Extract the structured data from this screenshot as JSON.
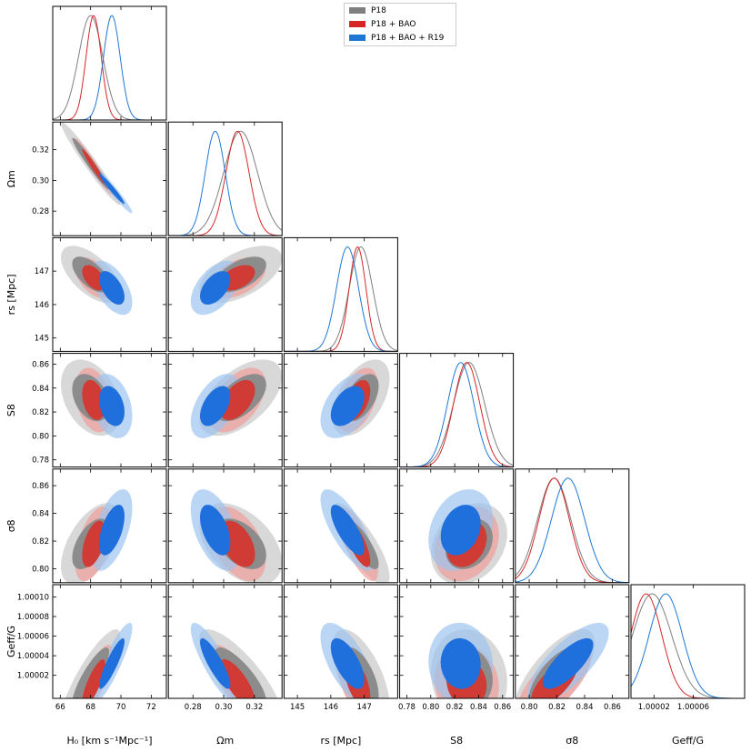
{
  "chart_data": {
    "type": "triangle corner plot",
    "parameters": [
      {
        "key": "H0",
        "label": "H₀ [km s⁻¹Mpc⁻¹]",
        "range": [
          65.5,
          73.0
        ],
        "ticks": [
          66,
          68,
          70,
          72
        ],
        "tick_labels": [
          "66",
          "68",
          "70",
          "72"
        ]
      },
      {
        "key": "Om",
        "label": "Ωm",
        "range": [
          0.264,
          0.338
        ],
        "ticks": [
          0.28,
          0.3,
          0.32
        ],
        "tick_labels": [
          "0.28",
          "0.30",
          "0.32"
        ]
      },
      {
        "key": "rs",
        "label": "rs [Mpc]",
        "range": [
          144.6,
          148.0
        ],
        "ticks": [
          145,
          146,
          147
        ],
        "tick_labels": [
          "145",
          "146",
          "147"
        ]
      },
      {
        "key": "S8",
        "label": "S8",
        "range": [
          0.774,
          0.869
        ],
        "ticks": [
          0.78,
          0.8,
          0.82,
          0.84,
          0.86
        ],
        "tick_labels": [
          "0.78",
          "0.80",
          "0.82",
          "0.84",
          "0.86"
        ]
      },
      {
        "key": "sigma8",
        "label": "σ8",
        "range": [
          0.79,
          0.872
        ],
        "ticks": [
          0.8,
          0.82,
          0.84,
          0.86
        ],
        "tick_labels": [
          "0.80",
          "0.82",
          "0.84",
          "0.86"
        ]
      },
      {
        "key": "Geff",
        "label": "Geff/G",
        "range": [
          0.9999965,
          1.0001125
        ],
        "ticks": [
          1.00002,
          1.00004,
          1.00006,
          1.00008,
          1.0001
        ],
        "tick_labels": [
          "1.00002",
          "1.00004",
          "1.00006",
          "1.00008",
          "1.00010"
        ],
        "x_ticks": [
          1.00002,
          1.00006
        ],
        "x_tick_labels": [
          "1.00002",
          "1.00006"
        ]
      }
    ],
    "series": [
      {
        "name": "P18",
        "color": "#7f7f7f",
        "fill_outer": "#c8c8c8",
        "fill_inner": "#8c8c8c",
        "mean": [
          68.0,
          0.311,
          146.9,
          0.832,
          0.818,
          1.000018
        ],
        "sigma": [
          0.8,
          0.011,
          0.35,
          0.013,
          0.012,
          2e-05
        ],
        "corr": [
          [
            1,
            -0.97,
            -0.6,
            -0.35,
            0.55,
            0.85
          ],
          [
            -0.97,
            1,
            0.55,
            0.55,
            -0.45,
            -0.8
          ],
          [
            -0.6,
            0.55,
            1,
            0.5,
            -0.8,
            -0.6
          ],
          [
            -0.35,
            0.55,
            0.5,
            1,
            0.25,
            -0.1
          ],
          [
            0.55,
            -0.45,
            -0.8,
            0.25,
            1,
            0.7
          ],
          [
            0.85,
            -0.8,
            -0.6,
            -0.1,
            0.7,
            1
          ]
        ]
      },
      {
        "name": "P18 + BAO",
        "color": "#d62728",
        "fill_outer": "#f09e9a",
        "fill_inner": "#d03b35",
        "mean": [
          68.2,
          0.309,
          146.8,
          0.83,
          0.818,
          1.000012
        ],
        "sigma": [
          0.5,
          0.0075,
          0.25,
          0.011,
          0.011,
          1.6e-05
        ],
        "corr": [
          [
            1,
            -0.97,
            -0.5,
            -0.3,
            0.5,
            0.8
          ],
          [
            -0.97,
            1,
            0.45,
            0.5,
            -0.45,
            -0.75
          ],
          [
            -0.5,
            0.45,
            1,
            0.45,
            -0.75,
            -0.55
          ],
          [
            -0.3,
            0.5,
            0.45,
            1,
            0.25,
            -0.1
          ],
          [
            0.5,
            -0.45,
            -0.75,
            0.25,
            1,
            0.7
          ],
          [
            0.8,
            -0.75,
            -0.55,
            -0.1,
            0.7,
            1
          ]
        ]
      },
      {
        "name": "P18 + BAO + R19",
        "color": "#1f77d4",
        "fill_outer": "#9ec4f0",
        "fill_inner": "#1f6fdc",
        "mean": [
          69.4,
          0.2945,
          146.5,
          0.825,
          0.828,
          1.000032
        ],
        "sigma": [
          0.55,
          0.0065,
          0.33,
          0.011,
          0.012,
          1.7e-05
        ],
        "corr": [
          [
            1,
            -0.97,
            -0.55,
            -0.3,
            0.55,
            0.88
          ],
          [
            -0.97,
            1,
            0.5,
            0.5,
            -0.5,
            -0.85
          ],
          [
            -0.55,
            0.5,
            1,
            0.45,
            -0.75,
            -0.65
          ],
          [
            -0.3,
            0.5,
            0.45,
            1,
            0.25,
            -0.05
          ],
          [
            0.55,
            -0.5,
            -0.75,
            0.25,
            1,
            0.75
          ],
          [
            0.88,
            -0.85,
            -0.65,
            -0.05,
            0.75,
            1
          ]
        ]
      }
    ],
    "legend_position": "top-center",
    "contours": [
      "68%",
      "95%"
    ]
  },
  "legend": {
    "items": [
      {
        "label": "P18",
        "color": "#7f7f7f"
      },
      {
        "label": "P18 + BAO",
        "color": "#d62728"
      },
      {
        "label": "P18 + BAO + R19",
        "color": "#1f77d4"
      }
    ]
  }
}
